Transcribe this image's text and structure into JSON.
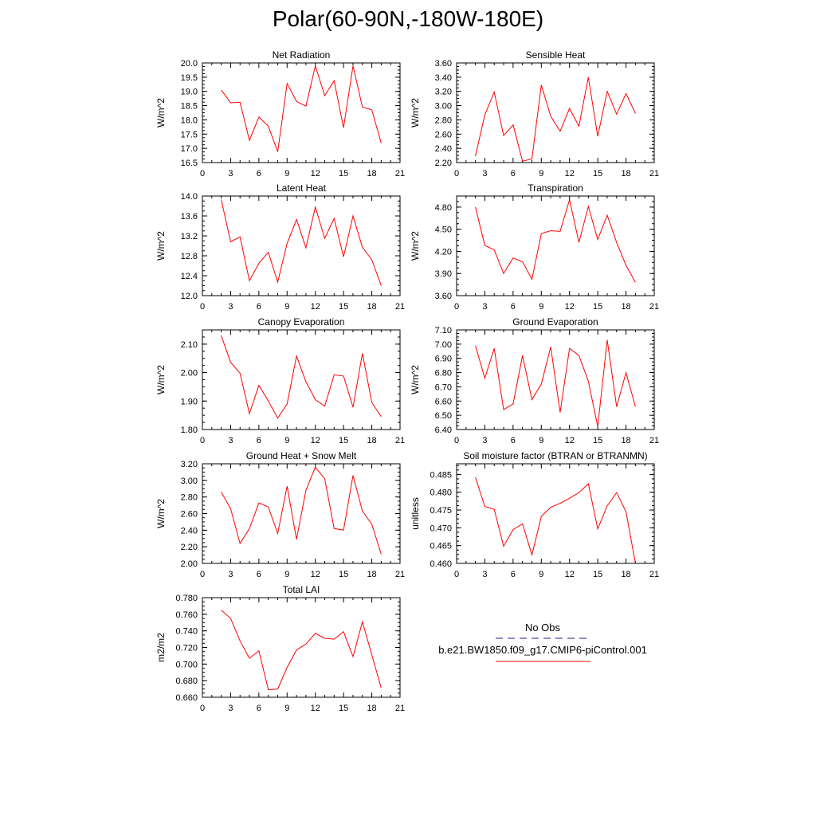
{
  "page_title": "Polar(60-90N,-180W-180E)",
  "legend": {
    "entries": [
      {
        "label": "No Obs",
        "color": "#1a1a8c",
        "style": "dashed"
      },
      {
        "label": "b.e21.BW1850.f09_g17.CMIP6-piControl.001",
        "color": "#ff0000",
        "style": "solid"
      }
    ]
  },
  "chart_data": [
    {
      "type": "line",
      "title": "Net Radiation",
      "ylabel": "W/m^2",
      "xlim": [
        0,
        21
      ],
      "xticks": [
        0,
        3,
        6,
        9,
        12,
        15,
        18,
        21
      ],
      "ylim": [
        16.5,
        20.0
      ],
      "yticks": [
        "16.5",
        "17.0",
        "17.5",
        "18.0",
        "18.5",
        "19.0",
        "19.5",
        "20.0"
      ],
      "x": [
        2,
        3,
        4,
        5,
        6,
        7,
        8,
        9,
        10,
        11,
        12,
        13,
        14,
        15,
        16,
        17,
        18,
        19
      ],
      "series": [
        {
          "color": "#ff0000",
          "values": [
            19.05,
            18.6,
            18.62,
            17.28,
            18.1,
            17.78,
            16.88,
            19.28,
            18.65,
            18.48,
            19.9,
            18.85,
            19.38,
            17.72,
            19.9,
            18.45,
            18.35,
            17.18
          ]
        }
      ]
    },
    {
      "type": "line",
      "title": "Sensible Heat",
      "ylabel": "W/m^2",
      "xlim": [
        0,
        21
      ],
      "xticks": [
        0,
        3,
        6,
        9,
        12,
        15,
        18,
        21
      ],
      "ylim": [
        2.2,
        3.6
      ],
      "yticks": [
        "2.20",
        "2.40",
        "2.60",
        "2.80",
        "3.00",
        "3.20",
        "3.40",
        "3.60"
      ],
      "x": [
        2,
        3,
        4,
        5,
        6,
        7,
        8,
        9,
        10,
        11,
        12,
        13,
        14,
        15,
        16,
        17,
        18,
        19
      ],
      "series": [
        {
          "color": "#ff0000",
          "values": [
            2.29,
            2.87,
            3.19,
            2.58,
            2.73,
            2.22,
            2.25,
            3.29,
            2.85,
            2.64,
            2.96,
            2.71,
            3.4,
            2.57,
            3.2,
            2.88,
            3.17,
            2.89
          ]
        }
      ]
    },
    {
      "type": "line",
      "title": "Latent Heat",
      "ylabel": "W/m^2",
      "xlim": [
        0,
        21
      ],
      "xticks": [
        0,
        3,
        6,
        9,
        12,
        15,
        18,
        21
      ],
      "ylim": [
        12.0,
        14.0
      ],
      "yticks": [
        "12.0",
        "12.4",
        "12.8",
        "13.2",
        "13.6",
        "14.0"
      ],
      "x": [
        2,
        3,
        4,
        5,
        6,
        7,
        8,
        9,
        10,
        11,
        12,
        13,
        14,
        15,
        16,
        17,
        18,
        19
      ],
      "series": [
        {
          "color": "#ff0000",
          "values": [
            13.93,
            13.08,
            13.18,
            12.3,
            12.65,
            12.87,
            12.27,
            13.05,
            13.53,
            12.96,
            13.78,
            13.15,
            13.55,
            12.78,
            13.6,
            12.97,
            12.72,
            12.2
          ]
        }
      ]
    },
    {
      "type": "line",
      "title": "Transpiration",
      "ylabel": "W/m^2",
      "xlim": [
        0,
        21
      ],
      "xticks": [
        0,
        3,
        6,
        9,
        12,
        15,
        18,
        21
      ],
      "ylim": [
        3.6,
        4.95
      ],
      "yticks": [
        "3.60",
        "3.90",
        "4.20",
        "4.50",
        "4.80"
      ],
      "x": [
        2,
        3,
        4,
        5,
        6,
        7,
        8,
        9,
        10,
        11,
        12,
        13,
        14,
        15,
        16,
        17,
        18,
        19
      ],
      "series": [
        {
          "color": "#ff0000",
          "values": [
            4.8,
            4.28,
            4.22,
            3.9,
            4.11,
            4.06,
            3.82,
            4.44,
            4.48,
            4.47,
            4.9,
            4.32,
            4.81,
            4.36,
            4.69,
            4.32,
            4.01,
            3.78
          ]
        }
      ]
    },
    {
      "type": "line",
      "title": "Canopy Evaporation",
      "ylabel": "W/m^2",
      "xlim": [
        0,
        21
      ],
      "xticks": [
        0,
        3,
        6,
        9,
        12,
        15,
        18,
        21
      ],
      "ylim": [
        1.8,
        2.15
      ],
      "yticks": [
        "1.80",
        "1.90",
        "2.00",
        "2.10"
      ],
      "x": [
        2,
        3,
        4,
        5,
        6,
        7,
        8,
        9,
        10,
        11,
        12,
        13,
        14,
        15,
        16,
        17,
        18,
        19
      ],
      "series": [
        {
          "color": "#ff0000",
          "values": [
            2.13,
            2.036,
            1.998,
            1.856,
            1.955,
            1.9,
            1.84,
            1.89,
            2.058,
            1.968,
            1.905,
            1.882,
            1.992,
            1.988,
            1.878,
            2.068,
            1.895,
            1.845
          ]
        }
      ]
    },
    {
      "type": "line",
      "title": "Ground Evaporation",
      "ylabel": "W/m^2",
      "xlim": [
        0,
        21
      ],
      "xticks": [
        0,
        3,
        6,
        9,
        12,
        15,
        18,
        21
      ],
      "ylim": [
        6.4,
        7.1
      ],
      "yticks": [
        "6.40",
        "6.50",
        "6.60",
        "6.70",
        "6.80",
        "6.90",
        "7.00",
        "7.10"
      ],
      "x": [
        2,
        3,
        4,
        5,
        6,
        7,
        8,
        9,
        10,
        11,
        12,
        13,
        14,
        15,
        16,
        17,
        18,
        19
      ],
      "series": [
        {
          "color": "#ff0000",
          "values": [
            6.99,
            6.76,
            6.97,
            6.54,
            6.58,
            6.92,
            6.61,
            6.72,
            6.98,
            6.52,
            6.97,
            6.92,
            6.74,
            6.42,
            7.03,
            6.56,
            6.8,
            6.56
          ]
        }
      ]
    },
    {
      "type": "line",
      "title": "Ground Heat + Snow Melt",
      "ylabel": "W/m^2",
      "xlim": [
        0,
        21
      ],
      "xticks": [
        0,
        3,
        6,
        9,
        12,
        15,
        18,
        21
      ],
      "ylim": [
        2.0,
        3.2
      ],
      "yticks": [
        "2.00",
        "2.20",
        "2.40",
        "2.60",
        "2.80",
        "3.00",
        "3.20"
      ],
      "x": [
        2,
        3,
        4,
        5,
        6,
        7,
        8,
        9,
        10,
        11,
        12,
        13,
        14,
        15,
        16,
        17,
        18,
        19
      ],
      "series": [
        {
          "color": "#ff0000",
          "values": [
            2.86,
            2.66,
            2.24,
            2.42,
            2.73,
            2.68,
            2.36,
            2.93,
            2.29,
            2.88,
            3.16,
            3.02,
            2.42,
            2.4,
            3.06,
            2.63,
            2.47,
            2.11
          ]
        }
      ]
    },
    {
      "type": "line",
      "title": "Soil moisture factor (BTRAN or BTRANMN)",
      "ylabel": "unitless",
      "xlim": [
        0,
        21
      ],
      "xticks": [
        0,
        3,
        6,
        9,
        12,
        15,
        18,
        21
      ],
      "ylim": [
        0.46,
        0.488
      ],
      "yticks": [
        "0.460",
        "0.465",
        "0.470",
        "0.475",
        "0.480",
        "0.485"
      ],
      "x": [
        2,
        3,
        4,
        5,
        6,
        7,
        8,
        9,
        10,
        11,
        12,
        13,
        14,
        15,
        16,
        17,
        18,
        19
      ],
      "series": [
        {
          "color": "#ff0000",
          "values": [
            0.4842,
            0.476,
            0.4752,
            0.4648,
            0.4695,
            0.4711,
            0.4624,
            0.4732,
            0.4758,
            0.4769,
            0.4783,
            0.4799,
            0.4824,
            0.4697,
            0.4762,
            0.4799,
            0.4745,
            0.46
          ]
        }
      ]
    },
    {
      "type": "line",
      "title": "Total LAI",
      "ylabel": "m2/m2",
      "xlim": [
        0,
        21
      ],
      "xticks": [
        0,
        3,
        6,
        9,
        12,
        15,
        18,
        21
      ],
      "ylim": [
        0.66,
        0.78
      ],
      "yticks": [
        "0.660",
        "0.680",
        "0.700",
        "0.720",
        "0.740",
        "0.760",
        "0.780"
      ],
      "x": [
        2,
        3,
        4,
        5,
        6,
        7,
        8,
        9,
        10,
        11,
        12,
        13,
        14,
        15,
        16,
        17,
        18,
        19
      ],
      "series": [
        {
          "color": "#ff0000",
          "values": [
            0.765,
            0.755,
            0.728,
            0.707,
            0.716,
            0.669,
            0.67,
            0.696,
            0.717,
            0.724,
            0.737,
            0.731,
            0.73,
            0.739,
            0.709,
            0.751,
            0.711,
            0.671
          ]
        }
      ]
    }
  ]
}
